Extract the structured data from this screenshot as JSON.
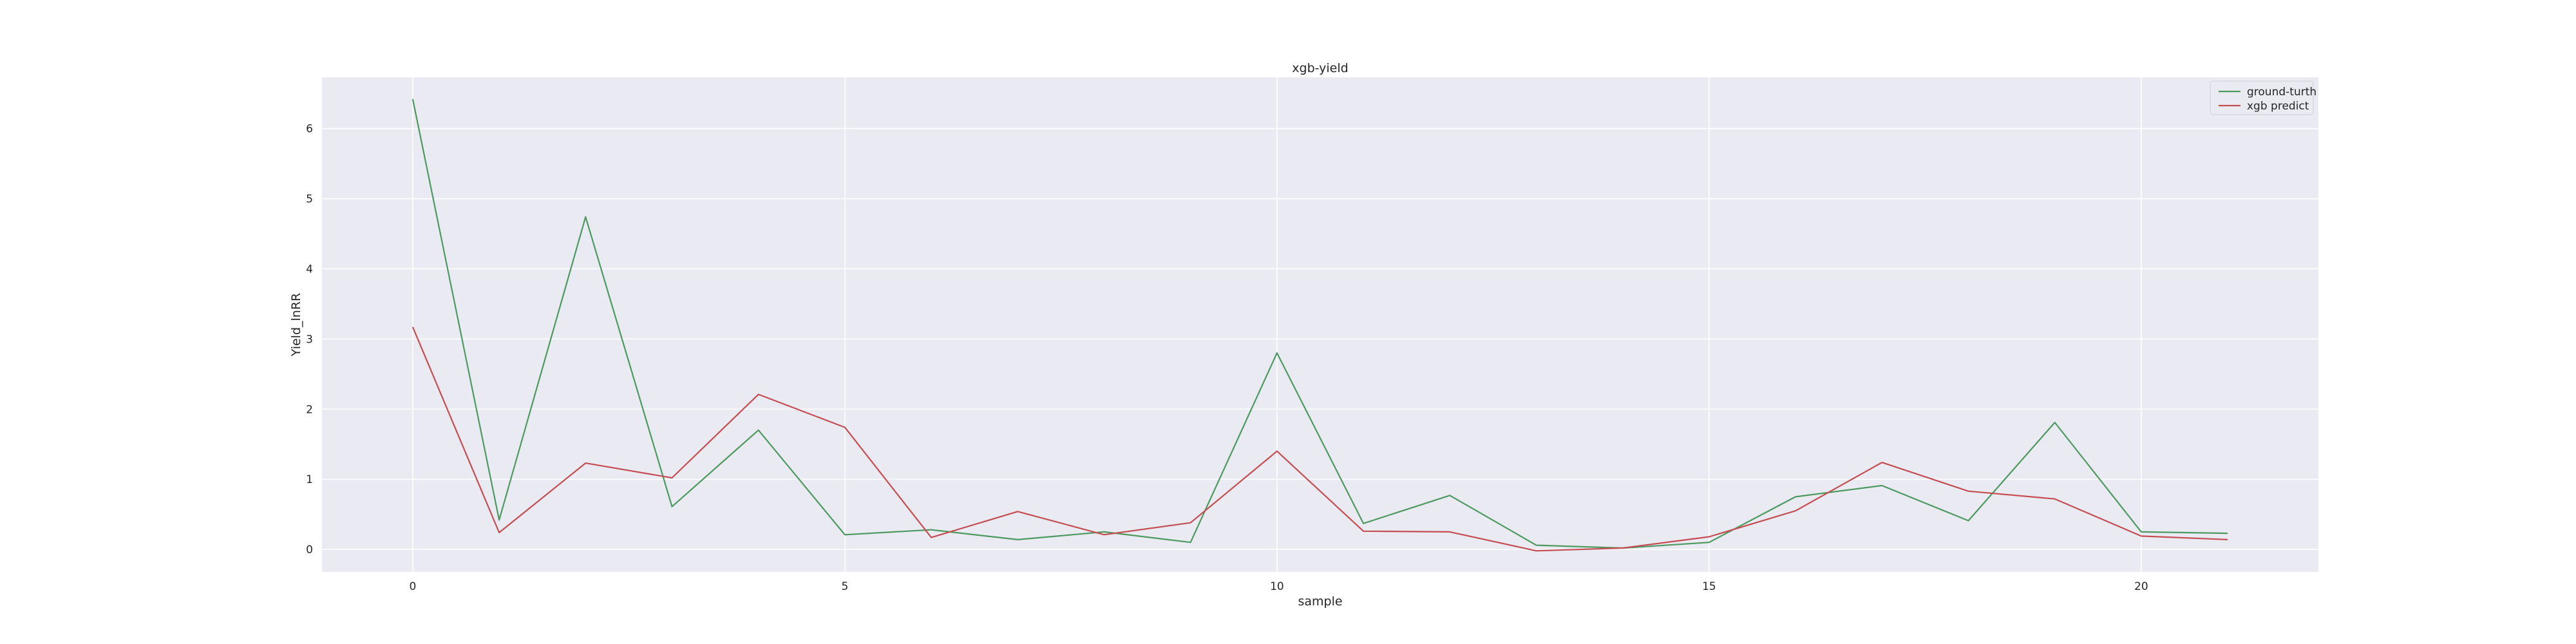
{
  "chart_data": {
    "type": "line",
    "title": "xgb-yield",
    "xlabel": "sample",
    "ylabel": "Yield_lnRR",
    "xlim": [
      -1.05,
      22.05
    ],
    "ylim": [
      -0.32,
      6.73
    ],
    "xticks": [
      0,
      5,
      10,
      15,
      20
    ],
    "yticks": [
      0,
      1,
      2,
      3,
      4,
      5,
      6
    ],
    "grid": true,
    "legend_position": "top-right",
    "x": [
      0,
      1,
      2,
      3,
      4,
      5,
      6,
      7,
      8,
      9,
      10,
      11,
      12,
      13,
      14,
      15,
      16,
      17,
      18,
      19,
      20,
      21
    ],
    "series": [
      {
        "name": "ground-turth",
        "color": "#4c9a5f",
        "values": [
          6.42,
          0.42,
          4.74,
          0.61,
          1.7,
          0.21,
          0.28,
          0.14,
          0.25,
          0.1,
          2.8,
          0.37,
          0.77,
          0.06,
          0.02,
          0.1,
          0.75,
          0.91,
          0.41,
          1.81,
          0.25,
          0.23
        ]
      },
      {
        "name": "xgb predict",
        "color": "#c44e52",
        "values": [
          3.17,
          0.24,
          1.23,
          1.02,
          2.21,
          1.74,
          0.17,
          0.54,
          0.21,
          0.38,
          1.4,
          0.26,
          0.25,
          -0.02,
          0.02,
          0.18,
          0.55,
          1.24,
          0.83,
          0.72,
          0.19,
          0.14
        ]
      }
    ]
  },
  "colors": {
    "plot_background": "#eaeaf2",
    "gridline": "#ffffff",
    "text": "#262626"
  }
}
